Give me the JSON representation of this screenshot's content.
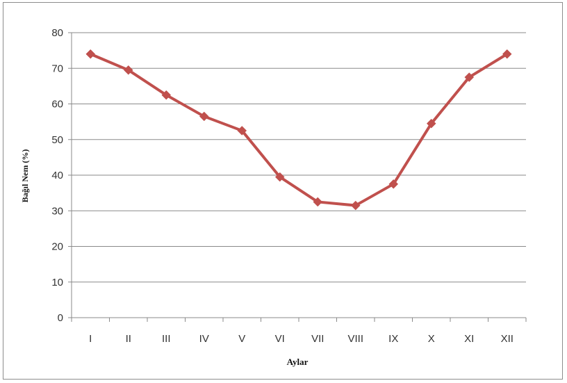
{
  "chart_data": {
    "type": "line",
    "title": "",
    "xlabel": "Aylar",
    "ylabel": "Bağıl Nem (%)",
    "categories": [
      "I",
      "II",
      "III",
      "IV",
      "V",
      "VI",
      "VII",
      "VIII",
      "IX",
      "X",
      "XI",
      "XII"
    ],
    "series": [
      {
        "values": [
          74,
          69.5,
          62.5,
          56.5,
          52.5,
          39.5,
          32.5,
          31.5,
          37.5,
          54.5,
          67.5,
          74
        ],
        "color": "#c0504d",
        "marker": "diamond"
      }
    ],
    "ylim": [
      0,
      80
    ],
    "yticks": [
      0,
      10,
      20,
      30,
      40,
      50,
      60,
      70,
      80
    ],
    "grid": true,
    "legend": "none"
  }
}
